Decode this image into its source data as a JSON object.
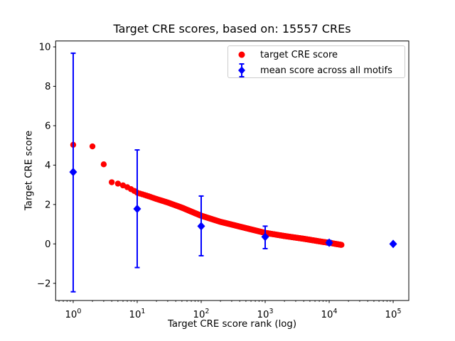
{
  "chart_data": {
    "type": "scatter",
    "title": "Target CRE scores, based on: 15557 CREs",
    "xlabel": "Target CRE score rank (log)",
    "ylabel": "Target CRE score",
    "x_scale": "log",
    "grid": false,
    "xlim_log10": [
      -0.274,
      5.244
    ],
    "ylim": [
      -2.873,
      10.3
    ],
    "x_ticks": [
      {
        "mantissa": "10",
        "exponent": "0"
      },
      {
        "mantissa": "10",
        "exponent": "1"
      },
      {
        "mantissa": "10",
        "exponent": "2"
      },
      {
        "mantissa": "10",
        "exponent": "3"
      },
      {
        "mantissa": "10",
        "exponent": "4"
      },
      {
        "mantissa": "10",
        "exponent": "5"
      }
    ],
    "y_ticks": [
      {
        "value": -2,
        "label": "−2"
      },
      {
        "value": 0,
        "label": "0"
      },
      {
        "value": 2,
        "label": "2"
      },
      {
        "value": 4,
        "label": "4"
      },
      {
        "value": 6,
        "label": "6"
      },
      {
        "value": 8,
        "label": "8"
      },
      {
        "value": 10,
        "label": "10"
      }
    ],
    "legend": {
      "position": "upper right",
      "entries": [
        {
          "label": "target CRE score",
          "color": "#ff0000",
          "marker": "circle"
        },
        {
          "label": "mean score across all motifs",
          "color": "#0000ff",
          "marker": "diamond-errorbar"
        }
      ]
    },
    "series": [
      {
        "name": "target CRE score",
        "color": "#ff0000",
        "marker": "circle",
        "n_points": 15557,
        "anchors_log10rank_score": [
          [
            0,
            5.03
          ],
          [
            0.301,
            4.95
          ],
          [
            0.477,
            4.04
          ],
          [
            0.602,
            3.13
          ],
          [
            0.699,
            3.06
          ],
          [
            0.778,
            2.97
          ],
          [
            0.845,
            2.88
          ],
          [
            0.903,
            2.78
          ],
          [
            0.954,
            2.69
          ],
          [
            1.0,
            2.6
          ],
          [
            1.176,
            2.42
          ],
          [
            1.301,
            2.28
          ],
          [
            1.477,
            2.1
          ],
          [
            1.699,
            1.84
          ],
          [
            1.845,
            1.64
          ],
          [
            2.0,
            1.43
          ],
          [
            2.301,
            1.12
          ],
          [
            2.477,
            0.98
          ],
          [
            2.699,
            0.8
          ],
          [
            3.0,
            0.56
          ],
          [
            3.301,
            0.4
          ],
          [
            3.602,
            0.26
          ],
          [
            3.903,
            0.1
          ],
          [
            4.0,
            0.06
          ],
          [
            4.1,
            0.0
          ],
          [
            4.192,
            -0.05
          ]
        ]
      },
      {
        "name": "mean score across all motifs",
        "color": "#0000ff",
        "marker": "diamond",
        "points": [
          {
            "x": 1,
            "y": 3.65,
            "lo": -2.43,
            "hi": 9.68
          },
          {
            "x": 10,
            "y": 1.78,
            "lo": -1.2,
            "hi": 4.77
          },
          {
            "x": 100,
            "y": 0.9,
            "lo": -0.6,
            "hi": 2.43
          },
          {
            "x": 1000,
            "y": 0.36,
            "lo": -0.24,
            "hi": 0.9
          },
          {
            "x": 10000,
            "y": 0.06,
            "lo": -0.05,
            "hi": 0.17
          },
          {
            "x": 100000,
            "y": 0.0,
            "lo": 0.0,
            "hi": 0.0
          }
        ]
      }
    ]
  }
}
